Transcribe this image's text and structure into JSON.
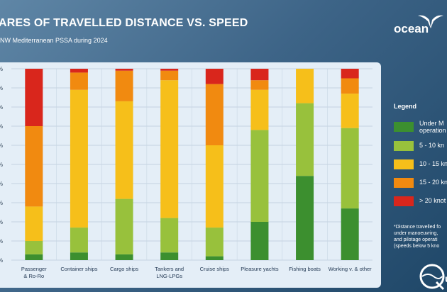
{
  "header": {
    "title": "ARES OF TRAVELLED DISTANCE VS. SPEED",
    "subtitle": "NW Mediterranean PSSA during 2024",
    "logo_text": "ocean"
  },
  "legend": {
    "title": "Legend",
    "items": [
      {
        "label_lines": [
          "Under M",
          "operation"
        ],
        "color": "#3c8f2f"
      },
      {
        "label_lines": [
          "5 - 10 kn"
        ],
        "color": "#98c13c"
      },
      {
        "label_lines": [
          "10 - 15 kn"
        ],
        "color": "#f6bf1a"
      },
      {
        "label_lines": [
          "15 - 20 kn"
        ],
        "color": "#f18a10"
      },
      {
        "label_lines": [
          "> 20 knot"
        ],
        "color": "#d9261c"
      }
    ]
  },
  "note": {
    "lines": [
      "*Distance travelled fo",
      "under manoeuvring,",
      "and pilotage operati",
      "(speeds below 5 kno"
    ]
  },
  "chart_data": {
    "type": "bar",
    "stacked": true,
    "y_tick_labels": [
      "%",
      "%",
      "%",
      "%",
      "%",
      "%",
      "%",
      "%",
      "%",
      "%",
      "%"
    ],
    "ylim": [
      0,
      100
    ],
    "categories": [
      [
        "Passenger",
        "& Ro-Ro"
      ],
      [
        "Container ships"
      ],
      [
        "Cargo ships"
      ],
      [
        "Tankers and",
        "LNG-LPGs"
      ],
      [
        "Cruise ships"
      ],
      [
        "Pleasure yachts"
      ],
      [
        "Fishing boats"
      ],
      [
        "Working v. & other"
      ]
    ],
    "series": [
      {
        "color": "#3c8f2f",
        "values": [
          3,
          4,
          3,
          4,
          2,
          20,
          44,
          27
        ]
      },
      {
        "color": "#98c13c",
        "values": [
          7,
          13,
          29,
          18,
          15,
          48,
          38,
          42
        ]
      },
      {
        "color": "#f6bf1a",
        "values": [
          18,
          72,
          51,
          72,
          43,
          21,
          18,
          18
        ]
      },
      {
        "color": "#f18a10",
        "values": [
          42,
          9,
          16,
          5,
          32,
          5,
          0,
          8
        ]
      },
      {
        "color": "#d9261c",
        "values": [
          30,
          2,
          1,
          1,
          8,
          6,
          0,
          5
        ]
      }
    ]
  }
}
